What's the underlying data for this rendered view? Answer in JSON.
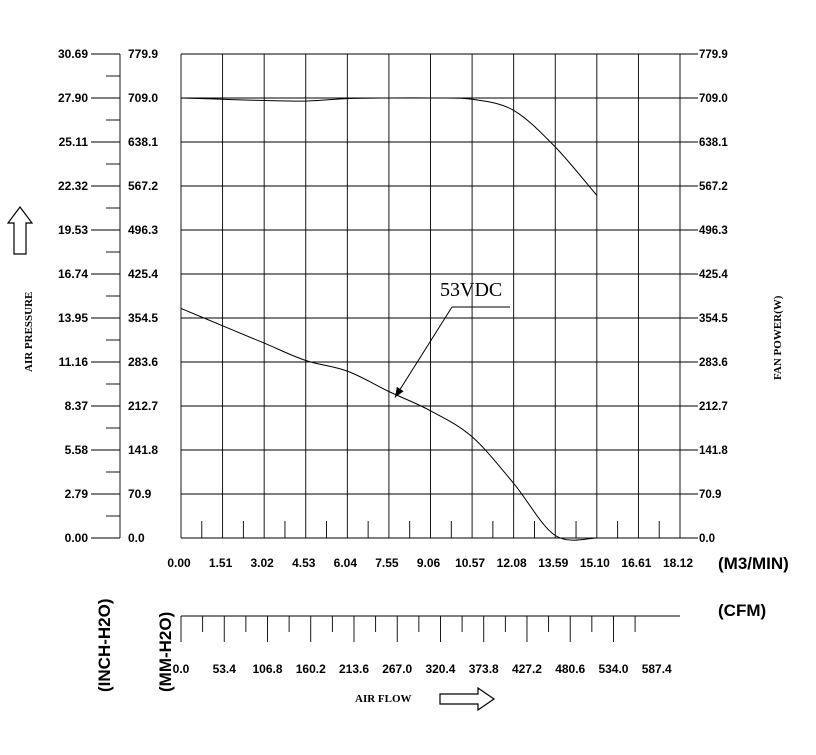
{
  "chart_data": {
    "type": "line",
    "x_axis": {
      "label": "AIR FLOW",
      "primary_unit": "(M3/MIN)",
      "primary_ticks": [
        "0.00",
        "1.51",
        "3.02",
        "4.53",
        "6.04",
        "7.55",
        "9.06",
        "10.57",
        "12.08",
        "13.59",
        "15.10",
        "16.61",
        "18.12"
      ],
      "xlim": [
        0,
        18.12
      ],
      "secondary_unit": "(CFM)",
      "secondary_ticks": [
        "0.0",
        "53.4",
        "106.8",
        "160.2",
        "213.6",
        "267.0",
        "320.4",
        "373.8",
        "427.2",
        "480.6",
        "534.0",
        "587.4"
      ]
    },
    "y_left": {
      "label": "AIR PRESSURE",
      "inch_unit": "(INCH-H2O)",
      "mm_unit": "(MM-H2O)",
      "inch_ticks": [
        "0.00",
        "2.79",
        "5.58",
        "8.37",
        "11.16",
        "13.95",
        "16.74",
        "19.53",
        "22.32",
        "25.11",
        "27.90",
        "30.69"
      ],
      "mm_ticks": [
        "0.0",
        "70.9",
        "141.8",
        "212.7",
        "283.6",
        "354.5",
        "425.4",
        "496.3",
        "567.2",
        "638.1",
        "709.0",
        "779.9"
      ],
      "ylim": [
        0,
        779.9
      ]
    },
    "y_right": {
      "label": "FAN POWER(W)",
      "ticks": [
        "0.0",
        "70.9",
        "141.8",
        "212.7",
        "283.6",
        "354.5",
        "425.4",
        "496.3",
        "567.2",
        "638.1",
        "709.0",
        "779.9"
      ],
      "ylim": [
        0,
        779.9
      ]
    },
    "series": [
      {
        "role": "pressure",
        "x": [
          0.0,
          1.51,
          3.02,
          4.53,
          6.04,
          7.55,
          9.06,
          10.57,
          12.08,
          13.59,
          15.1
        ],
        "values": [
          370,
          342,
          314,
          286,
          269,
          236,
          205,
          163,
          88,
          4,
          0
        ]
      },
      {
        "role": "power",
        "x": [
          0.0,
          1.51,
          3.02,
          4.53,
          6.04,
          7.55,
          9.06,
          10.57,
          12.08,
          13.59,
          15.1
        ],
        "values": [
          709,
          707,
          705,
          704,
          708,
          709,
          709,
          707,
          689,
          630,
          552
        ]
      }
    ],
    "annotation": {
      "text": "53VDC",
      "points_to_x": 7.55
    },
    "grid": true
  }
}
